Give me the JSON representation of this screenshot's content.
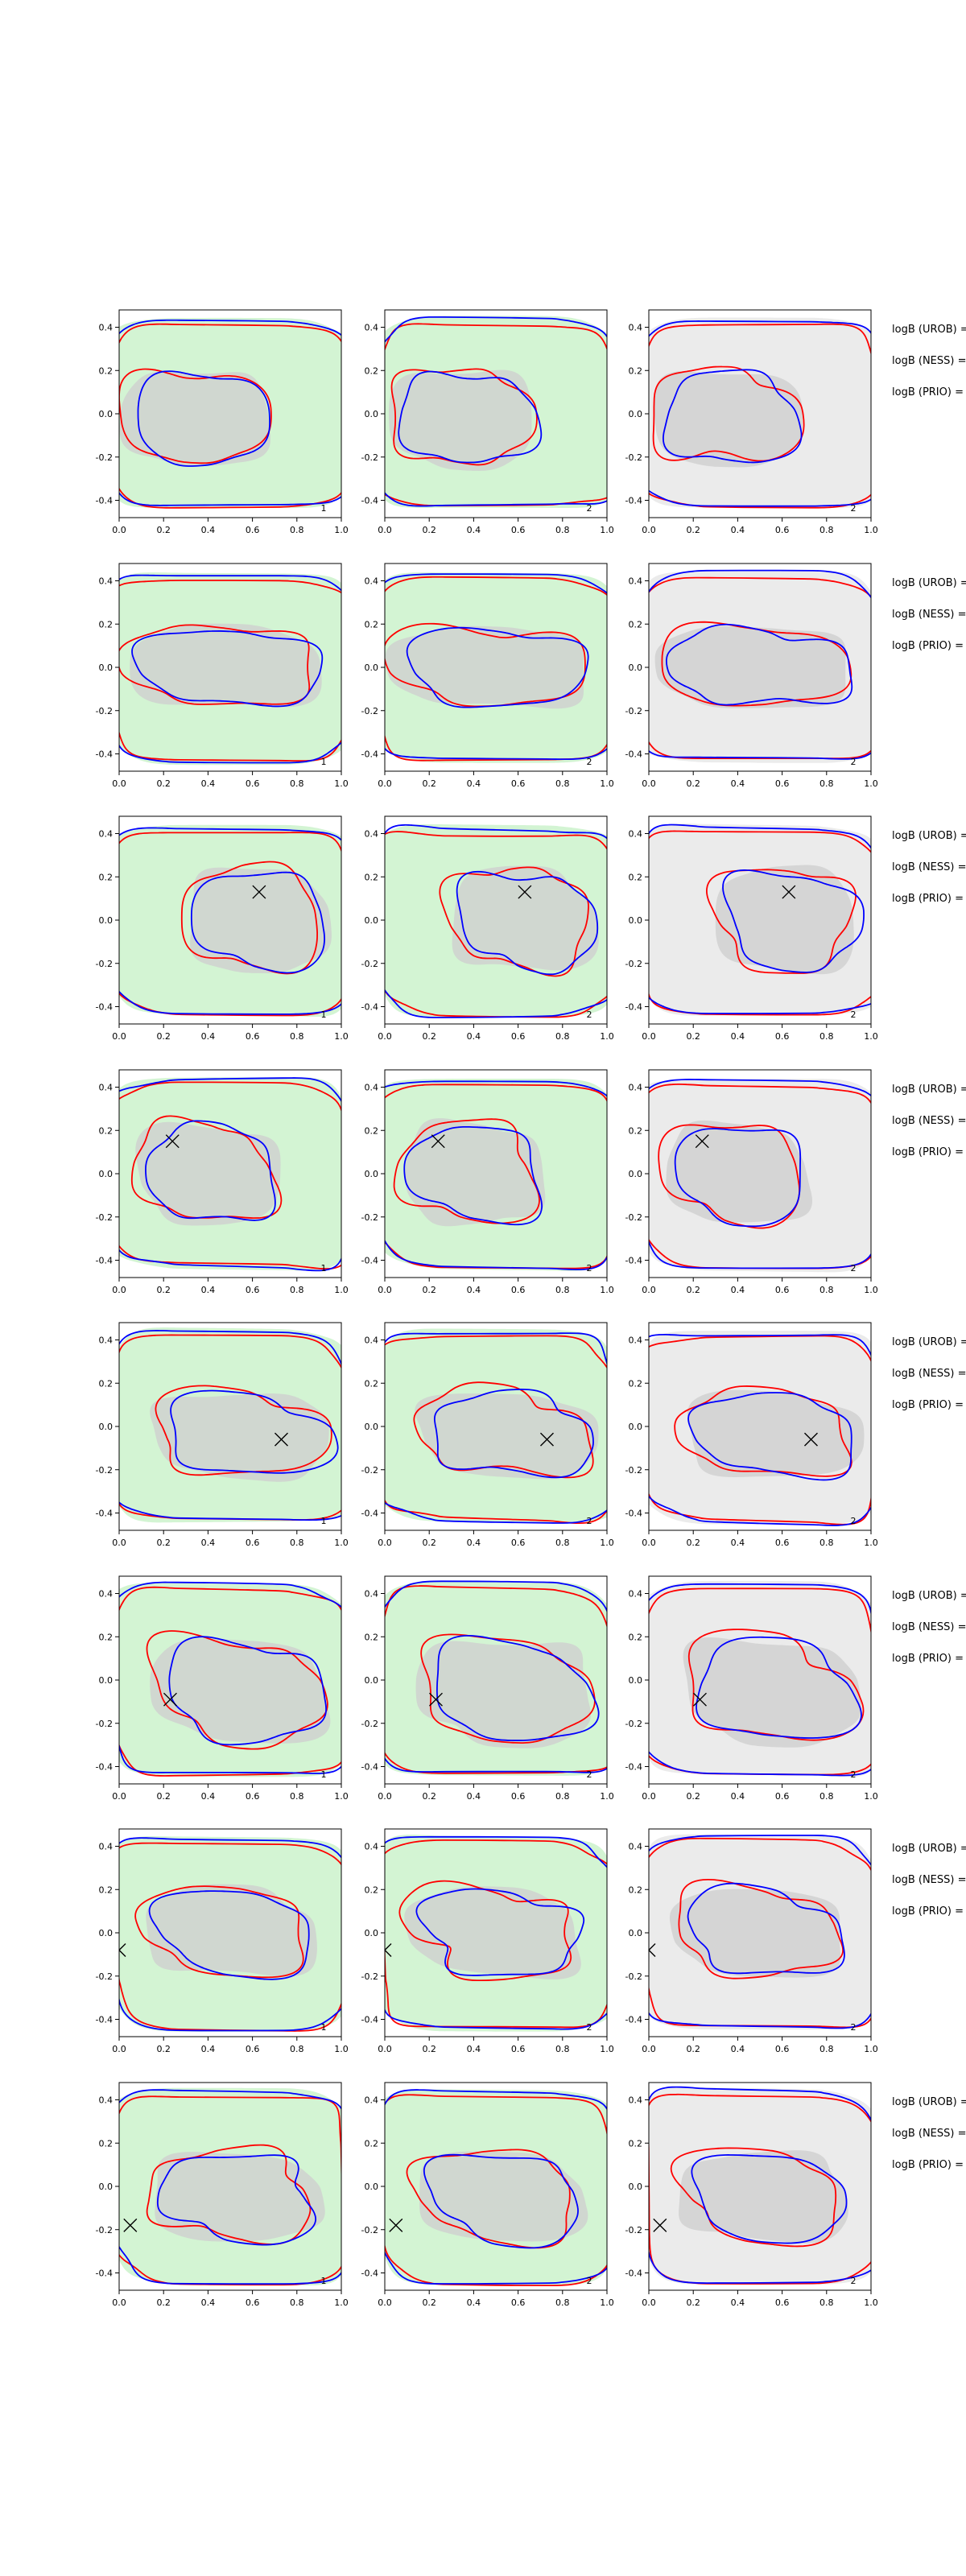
{
  "figure": {
    "colors": {
      "outer_region_green": "#d3f4d3",
      "outer_region_gray": "#ebebeb",
      "inner_region": "#cfcfcf",
      "contour_red": "#ff0000",
      "contour_blue": "#0000ff",
      "marker": "#000000"
    },
    "row_labels": [
      "logB (UROB) =",
      "logB (NESS) =",
      "logB (PRIO) ="
    ],
    "panel_numbers": [
      "1",
      "2",
      "2"
    ]
  },
  "chart_data": {
    "type": "contour-grid",
    "rows": 8,
    "cols": 3,
    "xlim": [
      0.0,
      1.0
    ],
    "ylim": [
      -0.48,
      0.48
    ],
    "x_ticks": [
      "0.0",
      "0.2",
      "0.4",
      "0.6",
      "0.8",
      "1.0"
    ],
    "y_ticks": [
      "0.4",
      "0.2",
      "0.0",
      "-0.2",
      "-0.4"
    ],
    "x_tick_values": [
      0.0,
      0.2,
      0.4,
      0.6,
      0.8,
      1.0
    ],
    "y_tick_values": [
      0.4,
      0.2,
      0.0,
      -0.2,
      -0.4
    ],
    "column_backgrounds": [
      "green",
      "green",
      "gray"
    ],
    "markers": [
      null,
      null,
      [
        0.63,
        0.13
      ],
      [
        0.24,
        0.15
      ],
      [
        0.73,
        -0.06
      ],
      [
        0.23,
        -0.09
      ],
      [
        0.0,
        -0.08
      ],
      [
        0.05,
        -0.18
      ]
    ]
  }
}
